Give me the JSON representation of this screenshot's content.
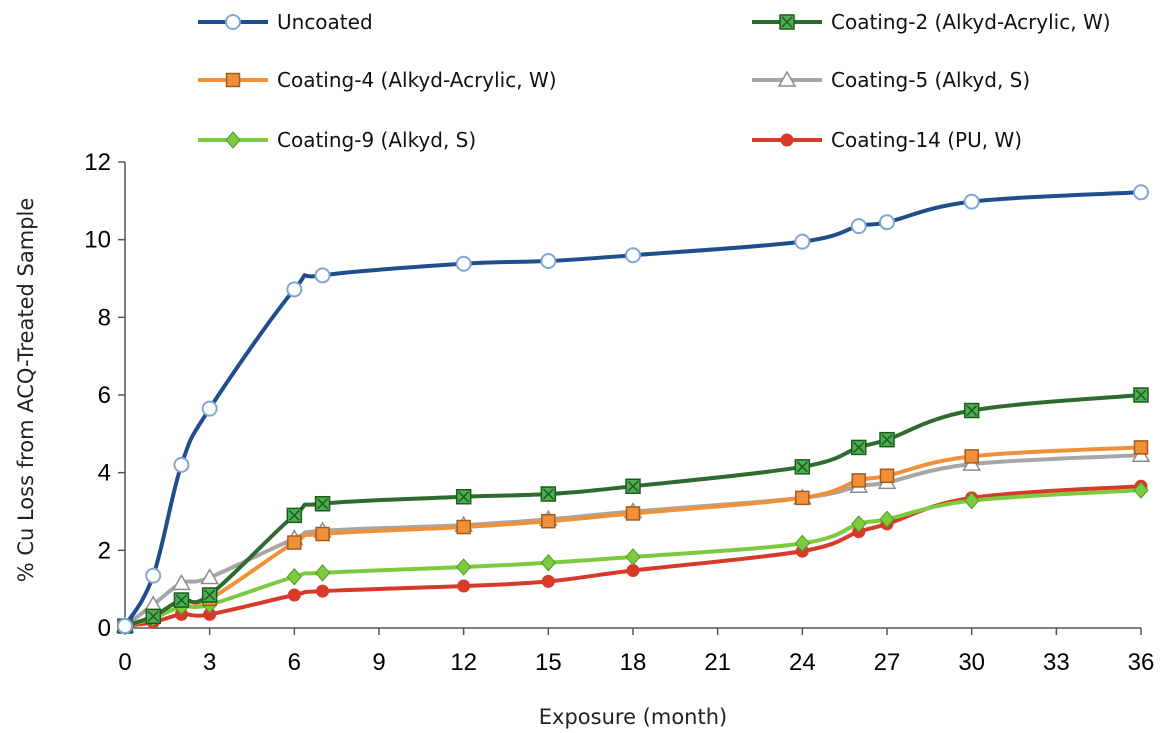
{
  "chart_data": {
    "type": "line",
    "title": "",
    "xlabel": "Exposure (month)",
    "ylabel": "% Cu  Loss from ACQ-Treated Sample",
    "xlim": [
      0,
      36
    ],
    "ylim": [
      0,
      12
    ],
    "x_ticks": [
      0,
      3,
      6,
      9,
      12,
      15,
      18,
      21,
      24,
      27,
      30,
      33,
      36
    ],
    "y_ticks": [
      0,
      2,
      4,
      6,
      8,
      10,
      12
    ],
    "grid": false,
    "legend_position": "top",
    "x": [
      0,
      1,
      2,
      3,
      6,
      7,
      12,
      15,
      18,
      24,
      26,
      27,
      30,
      36
    ],
    "series": [
      {
        "name": "Uncoated",
        "color": "#1f4e8c",
        "marker": "open-circle",
        "values": [
          0.05,
          1.35,
          4.2,
          5.65,
          8.72,
          9.08,
          9.38,
          9.45,
          9.6,
          9.95,
          10.35,
          10.45,
          10.98,
          11.22
        ]
      },
      {
        "name": "Coating-2 (Alkyd-Acrylic, W)",
        "color": "#2e6b2e",
        "marker": "x-square",
        "values": [
          0.05,
          0.3,
          0.72,
          0.85,
          2.9,
          3.2,
          3.38,
          3.45,
          3.65,
          4.15,
          4.65,
          4.85,
          5.6,
          6.0
        ]
      },
      {
        "name": "Coating-4 (Alkyd-Acrylic, W)",
        "color": "#f0913a",
        "marker": "square",
        "values": [
          0.05,
          0.3,
          0.72,
          0.75,
          2.2,
          2.42,
          2.6,
          2.75,
          2.95,
          3.35,
          3.8,
          3.92,
          4.42,
          4.65
        ]
      },
      {
        "name": "Coating-5 (Alkyd, S)",
        "color": "#a6a6a6",
        "marker": "open-triangle",
        "values": [
          0.05,
          0.6,
          1.15,
          1.3,
          2.3,
          2.5,
          2.65,
          2.8,
          3.0,
          3.35,
          3.65,
          3.75,
          4.22,
          4.45
        ]
      },
      {
        "name": "Coating-9 (Alkyd, S)",
        "color": "#7ccb3e",
        "marker": "diamond",
        "values": [
          0.05,
          0.25,
          0.55,
          0.6,
          1.32,
          1.42,
          1.57,
          1.68,
          1.83,
          2.18,
          2.68,
          2.8,
          3.28,
          3.55
        ]
      },
      {
        "name": "Coating-14 (PU, W)",
        "color": "#d83a2a",
        "marker": "filled-circle",
        "values": [
          0.05,
          0.15,
          0.35,
          0.35,
          0.85,
          0.95,
          1.08,
          1.2,
          1.48,
          1.98,
          2.48,
          2.68,
          3.35,
          3.65
        ]
      }
    ]
  }
}
